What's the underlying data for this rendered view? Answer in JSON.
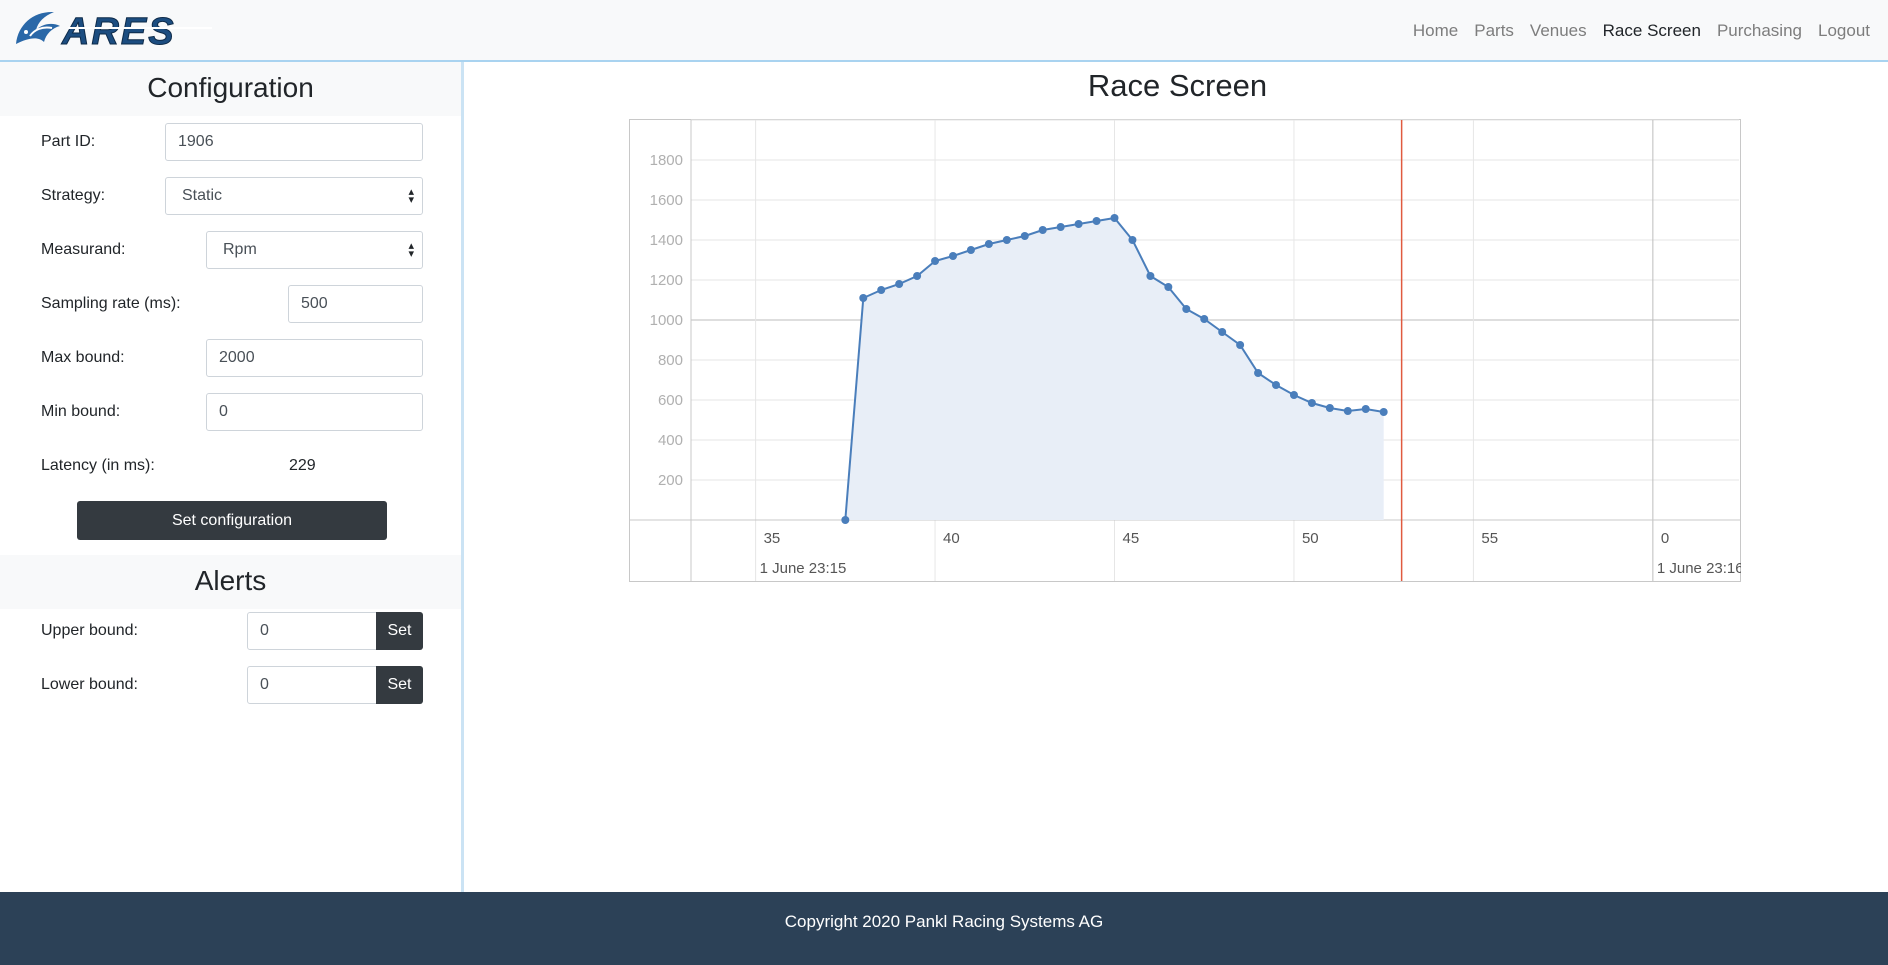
{
  "brand": {
    "name": "ARES"
  },
  "nav": {
    "items": [
      {
        "label": "Home",
        "active": false
      },
      {
        "label": "Parts",
        "active": false
      },
      {
        "label": "Venues",
        "active": false
      },
      {
        "label": "Race Screen",
        "active": true
      },
      {
        "label": "Purchasing",
        "active": false
      },
      {
        "label": "Logout",
        "active": false
      }
    ]
  },
  "config": {
    "title": "Configuration",
    "part_id_label": "Part ID:",
    "part_id_value": "1906",
    "strategy_label": "Strategy:",
    "strategy_value": "Static",
    "measurand_label": "Measurand:",
    "measurand_value": "Rpm",
    "sampling_label": "Sampling rate (ms):",
    "sampling_value": "500",
    "max_label": "Max bound:",
    "max_value": "2000",
    "min_label": "Min bound:",
    "min_value": "0",
    "latency_label": "Latency (in ms):",
    "latency_value": "229",
    "set_button": "Set configuration"
  },
  "alerts": {
    "title": "Alerts",
    "upper_label": "Upper bound:",
    "upper_value": "0",
    "lower_label": "Lower bound:",
    "lower_value": "0",
    "set_label": "Set"
  },
  "main": {
    "title": "Race Screen"
  },
  "chart_data": {
    "type": "area",
    "title": "",
    "xlabel": "",
    "ylabel": "",
    "x_unit": "seconds after 1 June 23:15",
    "y_ticks": [
      "200",
      "400",
      "600",
      "800",
      "1000",
      "1200",
      "1400",
      "1600",
      "1800"
    ],
    "x_ticks": [
      "35",
      "40",
      "45",
      "50",
      "55",
      "0"
    ],
    "x_sublabels": [
      "1 June 23:15",
      "1 June 23:16"
    ],
    "xlim": [
      33.2,
      62.4
    ],
    "ylim": [
      0,
      2000
    ],
    "current_time": 53,
    "grid": true,
    "series": [
      {
        "color": "#4a7ebb",
        "points": [
          [
            37.5,
            0
          ],
          [
            38.0,
            1110
          ],
          [
            38.5,
            1150
          ],
          [
            39.0,
            1180
          ],
          [
            39.5,
            1220
          ],
          [
            40.0,
            1295
          ],
          [
            40.5,
            1320
          ],
          [
            41.0,
            1350
          ],
          [
            41.5,
            1380
          ],
          [
            42.0,
            1400
          ],
          [
            42.5,
            1420
          ],
          [
            43.0,
            1450
          ],
          [
            43.5,
            1465
          ],
          [
            44.0,
            1480
          ],
          [
            44.5,
            1495
          ],
          [
            45.0,
            1510
          ],
          [
            45.5,
            1400
          ],
          [
            46.0,
            1220
          ],
          [
            46.5,
            1165
          ],
          [
            47.0,
            1055
          ],
          [
            47.5,
            1005
          ],
          [
            48.0,
            940
          ],
          [
            48.5,
            875
          ],
          [
            49.0,
            735
          ],
          [
            49.5,
            675
          ],
          [
            50.0,
            625
          ],
          [
            50.5,
            585
          ],
          [
            51.0,
            560
          ],
          [
            51.5,
            545
          ],
          [
            52.0,
            555
          ],
          [
            52.5,
            540
          ]
        ]
      }
    ]
  },
  "footer": {
    "text": "Copyright 2020 Pankl Racing Systems AG"
  },
  "colors": {
    "accent_dark": "#343a40",
    "footer_bg": "#2c4157",
    "line": "#4a7ebb",
    "area": "#e8eef7",
    "now_line": "#e05a3f"
  }
}
